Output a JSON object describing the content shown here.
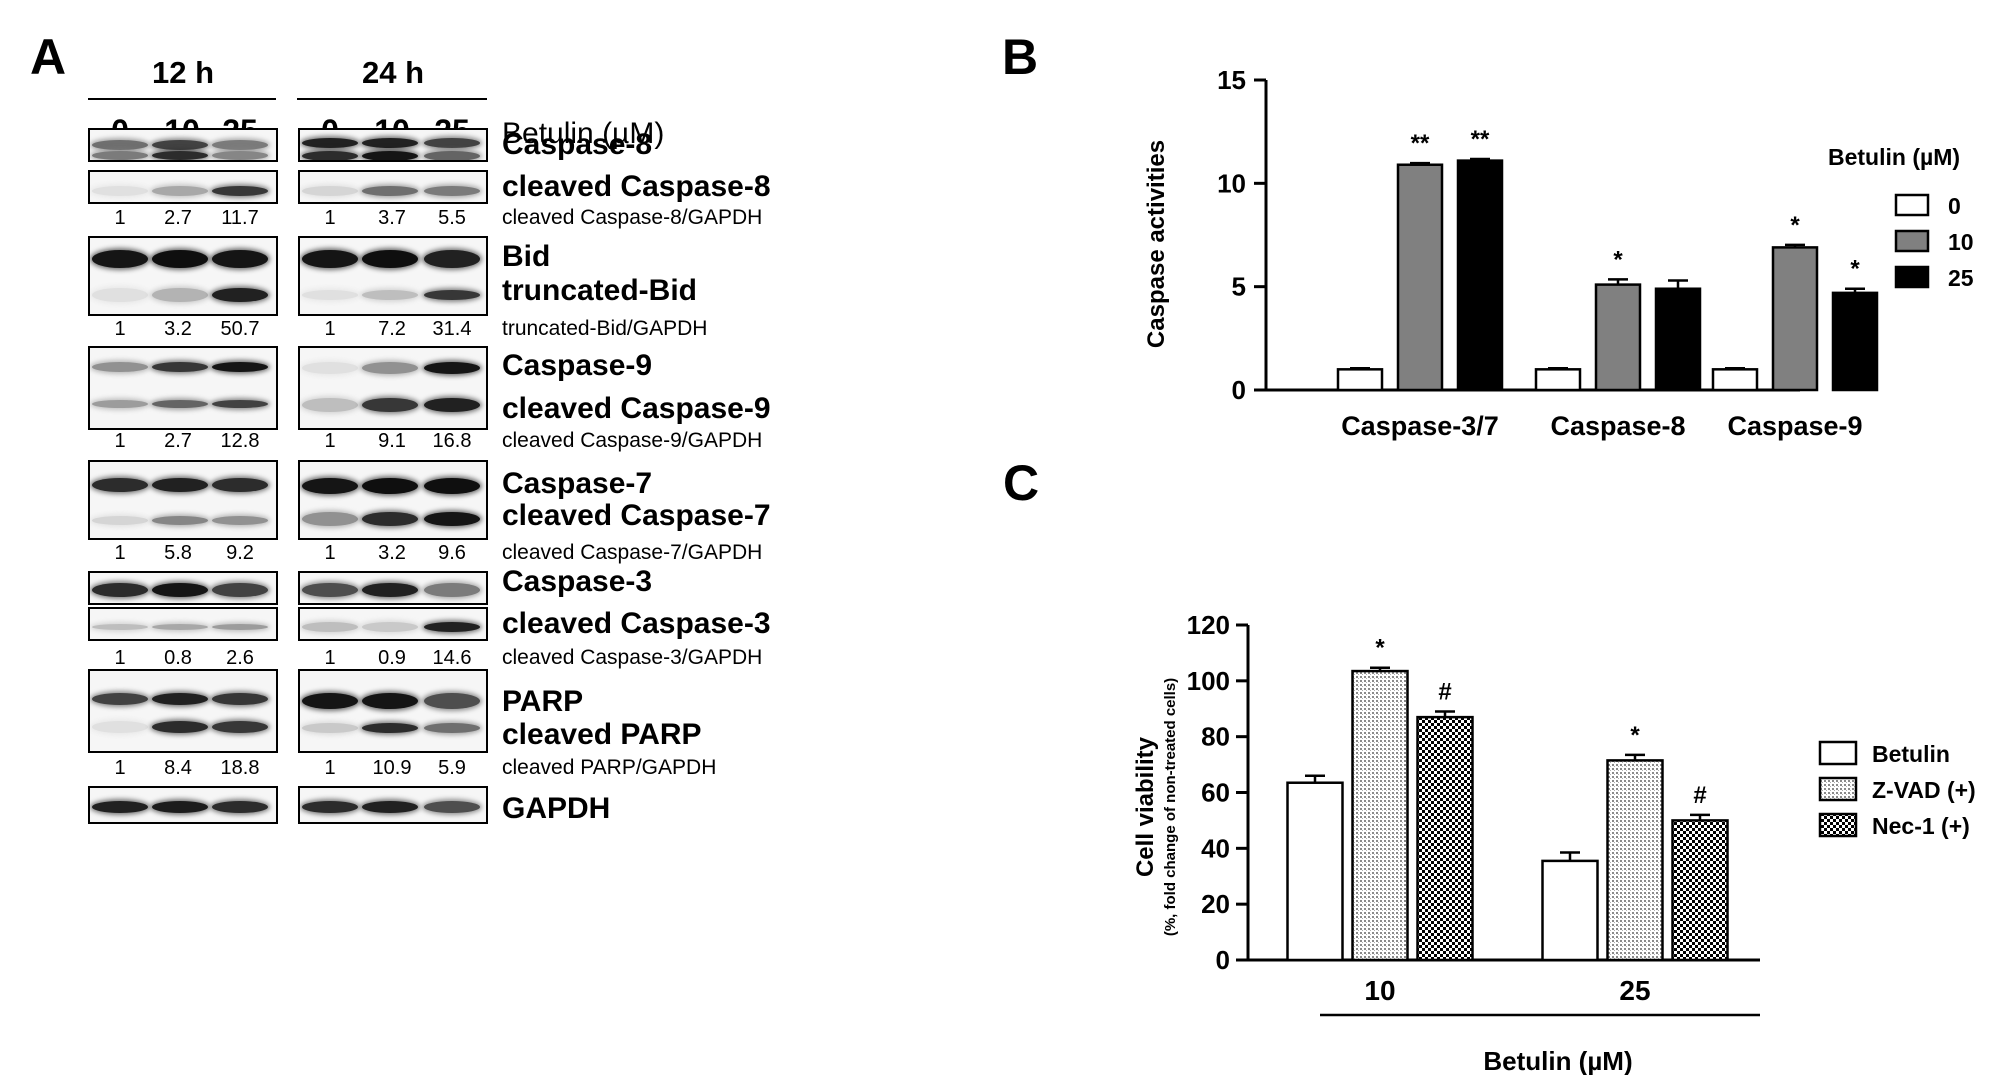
{
  "panelA": {
    "letter": "A",
    "time_headers": [
      "12 h",
      "24 h"
    ],
    "lanes": [
      "0",
      "10",
      "25"
    ],
    "treatment_label": "Betulin (µM)",
    "rows": [
      {
        "labels": [
          "Caspase-8"
        ]
      },
      {
        "labels": [
          "cleaved Caspase-8"
        ],
        "ratio_label": "cleaved Caspase-8/GAPDH",
        "ratios_12h": [
          "1",
          "2.7",
          "11.7"
        ],
        "ratios_24h": [
          "1",
          "3.7",
          "5.5"
        ]
      },
      {
        "labels": [
          "Bid",
          "truncated-Bid"
        ],
        "ratio_label": "truncated-Bid/GAPDH",
        "ratios_12h": [
          "1",
          "3.2",
          "50.7"
        ],
        "ratios_24h": [
          "1",
          "7.2",
          "31.4"
        ]
      },
      {
        "labels": [
          "Caspase-9",
          "cleaved Caspase-9"
        ],
        "ratio_label": "cleaved Caspase-9/GAPDH",
        "ratios_12h": [
          "1",
          "2.7",
          "12.8"
        ],
        "ratios_24h": [
          "1",
          "9.1",
          "16.8"
        ]
      },
      {
        "labels": [
          "Caspase-7",
          "cleaved Caspase-7"
        ],
        "ratio_label": "cleaved Caspase-7/GAPDH",
        "ratios_12h": [
          "1",
          "5.8",
          "9.2"
        ],
        "ratios_24h": [
          "1",
          "3.2",
          "9.6"
        ]
      },
      {
        "labels": [
          "Caspase-3"
        ]
      },
      {
        "labels": [
          "cleaved Caspase-3"
        ],
        "ratio_label": "cleaved Caspase-3/GAPDH",
        "ratios_12h": [
          "1",
          "0.8",
          "2.6"
        ],
        "ratios_24h": [
          "1",
          "0.9",
          "14.6"
        ]
      },
      {
        "labels": [
          "PARP",
          "cleaved PARP"
        ],
        "ratio_label": "cleaved PARP/GAPDH",
        "ratios_12h": [
          "1",
          "8.4",
          "18.8"
        ],
        "ratios_24h": [
          "1",
          "10.9",
          "5.9"
        ]
      },
      {
        "labels": [
          "GAPDH"
        ]
      }
    ]
  },
  "chart_data": [
    {
      "panel": "B",
      "type": "bar",
      "categories": [
        "Caspase-3/7",
        "Caspase-8",
        "Caspase-9"
      ],
      "series": [
        {
          "name": "0",
          "values": [
            1,
            1,
            1
          ],
          "errors": [
            0.05,
            0.05,
            0.05
          ],
          "annotations": [
            "",
            "",
            ""
          ]
        },
        {
          "name": "10",
          "values": [
            10.9,
            5.1,
            6.9
          ],
          "errors": [
            0.08,
            0.25,
            0.12
          ],
          "annotations": [
            "**",
            "*",
            "*"
          ]
        },
        {
          "name": "25",
          "values": [
            11.1,
            4.9,
            4.7
          ],
          "errors": [
            0.08,
            0.4,
            0.2
          ],
          "annotations": [
            "**",
            "",
            "*"
          ]
        }
      ],
      "title": "",
      "xlabel": "",
      "ylabel": "Caspase activities",
      "ylim": [
        0,
        15
      ],
      "yticks": [
        0,
        5,
        10,
        15
      ],
      "legend_title": "Betulin (µM)",
      "legend_position": "right",
      "colors": [
        "#ffffff",
        "#808080",
        "#000000"
      ]
    },
    {
      "panel": "C",
      "type": "bar",
      "categories": [
        "10",
        "25"
      ],
      "series": [
        {
          "name": "Betulin",
          "values": [
            63.5,
            35.5
          ],
          "errors": [
            2.5,
            3.0
          ],
          "annotations": [
            "",
            ""
          ]
        },
        {
          "name": "Z-VAD (+)",
          "values": [
            103.5,
            71.5
          ],
          "errors": [
            1.2,
            2.0
          ],
          "annotations": [
            "*",
            "*"
          ]
        },
        {
          "name": "Nec-1 (+)",
          "values": [
            87,
            50
          ],
          "errors": [
            2.0,
            2.0
          ],
          "annotations": [
            "#",
            "#"
          ]
        }
      ],
      "title": "",
      "xlabel": "Betulin (µM)",
      "ylabel": "Cell viability",
      "ylabel_sub": "(%, fold change of non-treated cells)",
      "ylim": [
        0,
        120
      ],
      "yticks": [
        0,
        20,
        40,
        60,
        80,
        100,
        120
      ],
      "legend_position": "right",
      "patterns": [
        "white",
        "dotted",
        "checker"
      ]
    }
  ]
}
